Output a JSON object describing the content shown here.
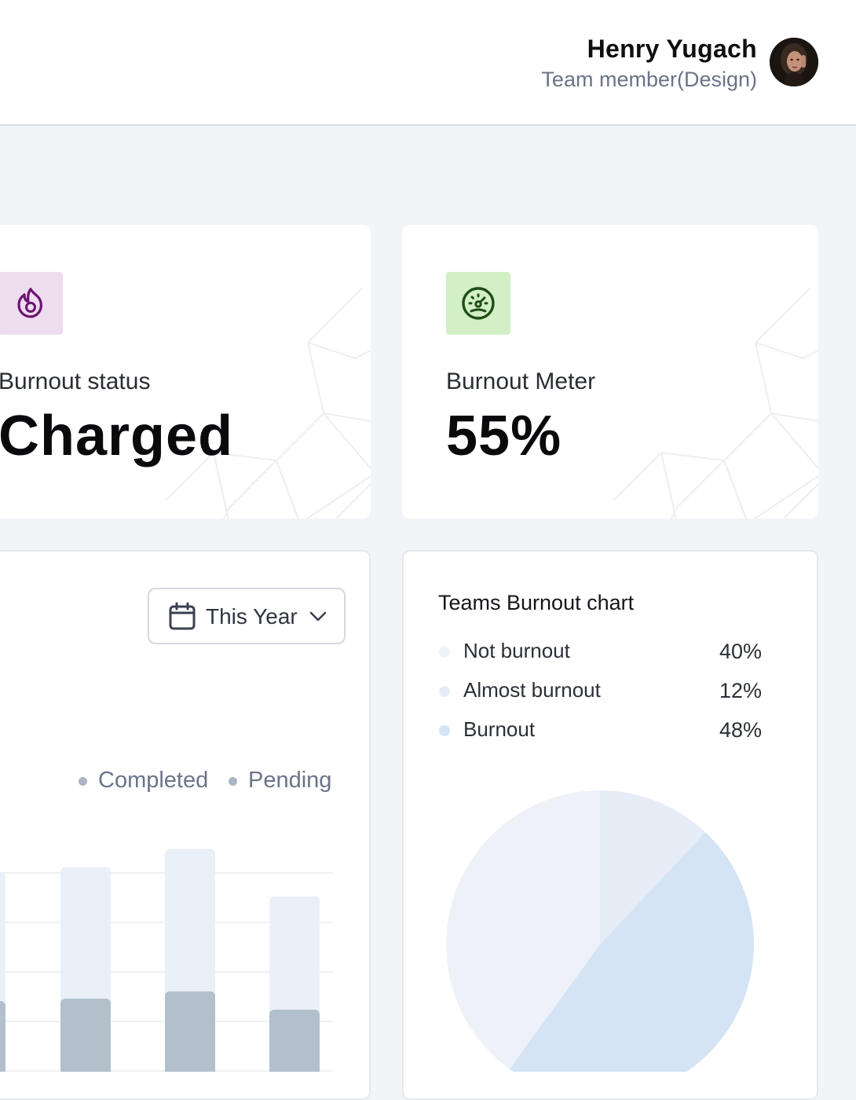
{
  "header": {
    "user_name": "Henry Yugach",
    "user_role": "Team member(Design)"
  },
  "cards": {
    "burnout_status": {
      "label": "Burnout status",
      "value": "Charged",
      "icon": "fire-icon",
      "icon_color": "#6b1470",
      "tile_color": "#eedcef"
    },
    "burnout_meter": {
      "label": "Burnout Meter",
      "value": "55%",
      "icon": "gauge-icon",
      "icon_color": "#1f4d14",
      "tile_color": "#d3efc6"
    }
  },
  "task_chart": {
    "period_selector": "This Year",
    "legend": [
      "Completed",
      "Pending"
    ],
    "colors": {
      "completed": "#b3c0cc",
      "pending": "#eaf0f8"
    },
    "chart_data": {
      "type": "bar",
      "stacked": true,
      "series": [
        {
          "name": "Completed",
          "values": [
            null,
            100,
            110,
            85
          ]
        },
        {
          "name": "Pending",
          "values": [
            null,
            180,
            195,
            155
          ]
        }
      ]
    }
  },
  "pie_chart": {
    "title": "Teams Burnout chart",
    "items": [
      {
        "label": "Not burnout",
        "value": "40%",
        "color": "#eef2f8"
      },
      {
        "label": "Almost burnout",
        "value": "12%",
        "color": "#e6edf6"
      },
      {
        "label": "Burnout",
        "value": "48%",
        "color": "#d5e4f4"
      }
    ],
    "chart_data": {
      "type": "pie",
      "title": "Teams Burnout chart",
      "categories": [
        "Not burnout",
        "Almost burnout",
        "Burnout"
      ],
      "values": [
        40,
        12,
        48
      ]
    }
  }
}
